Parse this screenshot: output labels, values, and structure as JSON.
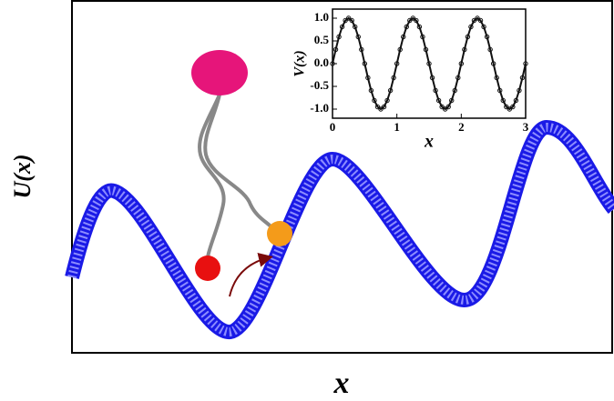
{
  "chart_data": [
    {
      "type": "diagram",
      "xlabel": "x",
      "ylabel": "U(x)"
    },
    {
      "type": "line",
      "xlabel": "x",
      "ylabel": "V(x)",
      "xlim": [
        0,
        3
      ],
      "ylim": [
        -1.2,
        1.2
      ],
      "xticks": [
        0,
        1,
        2,
        3
      ],
      "yticks": [
        {
          "value": -1,
          "label": "-1.0"
        },
        {
          "value": -0.5,
          "label": "-0.5"
        },
        {
          "value": 0,
          "label": "0.0"
        },
        {
          "value": 0.5,
          "label": "0.5"
        },
        {
          "value": 1,
          "label": "1.0"
        }
      ],
      "series": [
        {
          "color": "#111111",
          "x": [
            0,
            0.05,
            0.1,
            0.15,
            0.2,
            0.25,
            0.3,
            0.35,
            0.4,
            0.45,
            0.5,
            0.55,
            0.6,
            0.65,
            0.7,
            0.75,
            0.8,
            0.85,
            0.9,
            0.95,
            1,
            1.05,
            1.1,
            1.15,
            1.2,
            1.25,
            1.3,
            1.35,
            1.4,
            1.45,
            1.5,
            1.55,
            1.6,
            1.65,
            1.7,
            1.75,
            1.8,
            1.85,
            1.9,
            1.95,
            2,
            2.05,
            2.1,
            2.15,
            2.2,
            2.25,
            2.3,
            2.35,
            2.4,
            2.45,
            2.5,
            2.55,
            2.6,
            2.65,
            2.7,
            2.75,
            2.8,
            2.85,
            2.9,
            2.95,
            3
          ],
          "values": [
            0,
            0.31,
            0.59,
            0.81,
            0.95,
            1,
            0.95,
            0.81,
            0.59,
            0.31,
            0,
            -0.31,
            -0.59,
            -0.81,
            -0.95,
            -1,
            -0.95,
            -0.81,
            -0.59,
            -0.31,
            0,
            0.31,
            0.59,
            0.81,
            0.95,
            1,
            0.95,
            0.81,
            0.59,
            0.31,
            0,
            -0.31,
            -0.59,
            -0.81,
            -0.95,
            -1,
            -0.95,
            -0.81,
            -0.59,
            -0.31,
            0,
            0.31,
            0.59,
            0.81,
            0.95,
            1,
            0.95,
            0.81,
            0.59,
            0.31,
            0,
            -0.31,
            -0.59,
            -0.81,
            -0.95,
            -1,
            -0.95,
            -0.81,
            -0.59,
            -0.31,
            0
          ]
        }
      ]
    }
  ]
}
